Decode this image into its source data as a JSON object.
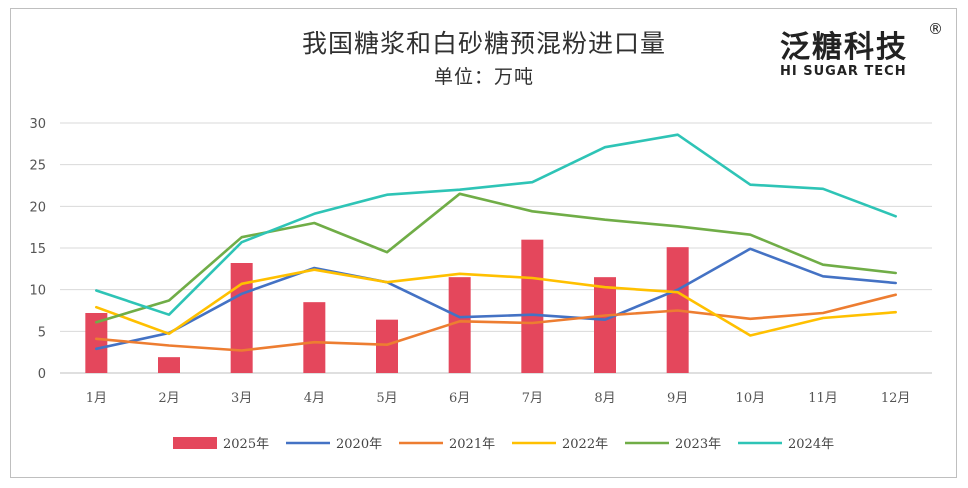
{
  "logo": {
    "main": "泛糖科技",
    "registered": "®",
    "sub": "HI SUGAR TECH"
  },
  "chart_data": {
    "type": "bar",
    "title": "我国糖浆和白砂糖预混粉进口量",
    "subtitle": "单位：万吨",
    "xlabel": "",
    "ylabel": "",
    "ylim": [
      0,
      30
    ],
    "yticks": [
      0,
      5,
      10,
      15,
      20,
      25,
      30
    ],
    "grid": true,
    "legend_position": "bottom",
    "categories": [
      "1月",
      "2月",
      "3月",
      "4月",
      "5月",
      "6月",
      "7月",
      "8月",
      "9月",
      "10月",
      "11月",
      "12月"
    ],
    "bar_series": [
      {
        "name": "2025年",
        "color": "#e4475c",
        "values": [
          7.2,
          1.9,
          13.2,
          8.5,
          6.4,
          11.5,
          16.0,
          11.5,
          15.1,
          null,
          null,
          null
        ]
      }
    ],
    "line_series": [
      {
        "name": "2020年",
        "color": "#4472c4",
        "values": [
          2.9,
          4.8,
          9.5,
          12.6,
          10.9,
          6.7,
          7.0,
          6.4,
          10.0,
          14.9,
          11.6,
          10.8
        ]
      },
      {
        "name": "2021年",
        "color": "#ed7d31",
        "values": [
          4.1,
          3.3,
          2.7,
          3.7,
          3.4,
          6.2,
          6.0,
          6.9,
          7.5,
          6.5,
          7.2,
          9.4
        ]
      },
      {
        "name": "2022年",
        "color": "#ffc000",
        "values": [
          7.9,
          4.7,
          10.7,
          12.4,
          10.9,
          11.9,
          11.4,
          10.3,
          9.7,
          4.5,
          6.6,
          7.3
        ]
      },
      {
        "name": "2023年",
        "color": "#70ad47",
        "values": [
          6.1,
          8.7,
          16.3,
          18.0,
          14.5,
          21.5,
          19.4,
          18.4,
          17.6,
          16.6,
          13.0,
          12.0
        ]
      },
      {
        "name": "2024年",
        "color": "#2ec4b6",
        "values": [
          9.9,
          7.0,
          15.7,
          19.1,
          21.4,
          22.0,
          22.9,
          27.1,
          28.6,
          22.6,
          22.1,
          18.8
        ]
      }
    ]
  }
}
